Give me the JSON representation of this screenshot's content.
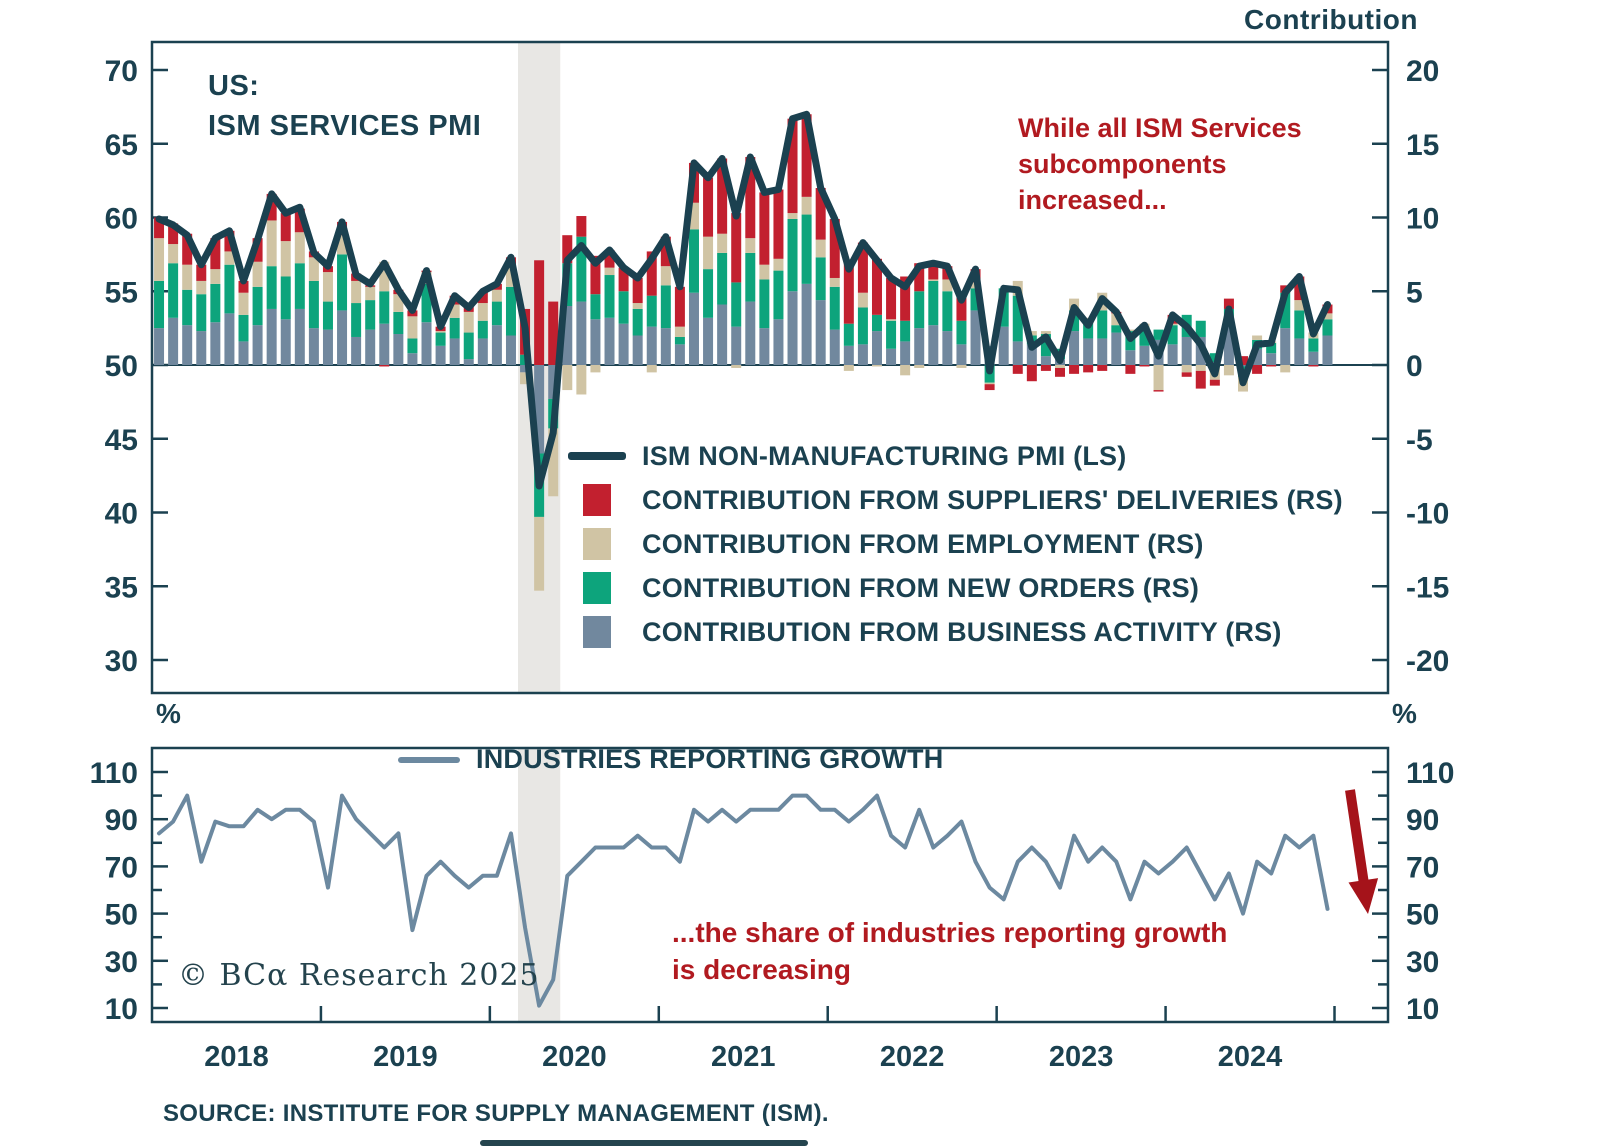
{
  "colors": {
    "axis": "#1b4150",
    "pmi_line": "#1b4150",
    "suppliers_deliveries": "#c2202f",
    "employment": "#d0c4a4",
    "new_orders": "#0da47c",
    "business_activity": "#71889e",
    "industries_line": "#6c89a0",
    "annotation_red": "#b11a20",
    "arrow_red": "#a5131a",
    "recession_band": "#e8e7e4"
  },
  "header": {
    "contribution_label": "Contribution"
  },
  "top_chart": {
    "title_lines": [
      "US:",
      "ISM SERVICES PMI"
    ],
    "annotation_lines": [
      "While all ISM Services",
      "subcomponents",
      "increased..."
    ],
    "legend": [
      {
        "label": "ISM NON-MANUFACTURING PMI (LS)",
        "type": "line",
        "color": "#1b4150"
      },
      {
        "label": "CONTRIBUTION FROM SUPPLIERS' DELIVERIES (RS)",
        "type": "box",
        "color": "#c2202f"
      },
      {
        "label": "CONTRIBUTION FROM EMPLOYMENT (RS)",
        "type": "box",
        "color": "#d0c4a4"
      },
      {
        "label": "CONTRIBUTION FROM NEW ORDERS (RS)",
        "type": "box",
        "color": "#0da47c"
      },
      {
        "label": "CONTRIBUTION FROM BUSINESS ACTIVITY (RS)",
        "type": "box",
        "color": "#71889e"
      }
    ]
  },
  "bottom_chart": {
    "legend_label": "INDUSTRIES REPORTING GROWTH",
    "annotation_lines": [
      "...the share of industries reporting growth",
      "is decreasing"
    ],
    "left_unit": "%",
    "right_unit": "%"
  },
  "footer": {
    "source": "SOURCE: INSTITUTE FOR SUPPLY MANAGEMENT (ISM).",
    "copyright": "© BCα Research 2025"
  },
  "x_axis": {
    "years": [
      "2018",
      "2019",
      "2020",
      "2021",
      "2022",
      "2023",
      "2024"
    ]
  },
  "chart_data": [
    {
      "type": "bar",
      "stacked": true,
      "title": "US: ISM SERVICES PMI",
      "x_start": "2018-01",
      "x_end": "2024-12",
      "x_freq": "monthly",
      "left_ticks": [
        70,
        65,
        60,
        55,
        50,
        45,
        40,
        35,
        30
      ],
      "left_ylim": [
        27.8,
        71.9
      ],
      "right_axis_title": "Contribution",
      "right_ticks": [
        20,
        15,
        10,
        5,
        0,
        -5,
        -10,
        -15,
        -20
      ],
      "right_ylim": [
        -20,
        20
      ],
      "baseline_left": 50,
      "recession_band": {
        "from": "2020-03",
        "to": "2020-06",
        "color": "#e8e7e4"
      },
      "series": [
        {
          "key": "business_activity",
          "name": "CONTRIBUTION FROM BUSINESS ACTIVITY (RS)",
          "color": "#71889e",
          "values": [
            2.5,
            3.2,
            2.7,
            2.3,
            2.9,
            3.5,
            1.6,
            2.7,
            3.8,
            3.1,
            3.8,
            2.5,
            2.4,
            3.7,
            1.9,
            2.4,
            2.8,
            2.1,
            0.8,
            2.9,
            1.3,
            1.8,
            0.4,
            1.8,
            2.7,
            2.0,
            -0.5,
            -6.0,
            -2.3,
            4.0,
            4.3,
            3.1,
            3.2,
            2.8,
            2.0,
            2.6,
            2.5,
            1.4,
            4.9,
            3.2,
            4.1,
            2.6,
            4.3,
            2.5,
            3.1,
            5.0,
            5.5,
            4.4,
            2.4,
            1.3,
            1.4,
            2.3,
            1.1,
            1.6,
            2.5,
            2.7,
            2.3,
            1.4,
            3.7,
            1.3,
            2.6,
            1.6,
            1.4,
            0.6,
            0.4,
            2.3,
            1.8,
            1.8,
            2.2,
            1.0,
            1.3,
            1.7,
            1.4,
            1.9,
            1.9,
            0.2,
            2.8,
            -0.1,
            1.1,
            0.8,
            2.5,
            1.8,
            0.9,
            2.0
          ]
        },
        {
          "key": "new_orders",
          "name": "CONTRIBUTION FROM NEW ORDERS (RS)",
          "color": "#0da47c",
          "values": [
            3.2,
            3.7,
            2.4,
            2.5,
            2.6,
            3.3,
            1.8,
            2.6,
            2.9,
            2.9,
            3.1,
            3.2,
            1.9,
            3.8,
            2.3,
            2.0,
            2.2,
            1.5,
            1.0,
            2.6,
            0.9,
            1.4,
            1.8,
            1.2,
            1.6,
            3.3,
            0.7,
            -4.3,
            -2.0,
            2.9,
            4.4,
            1.7,
            2.9,
            2.2,
            1.8,
            2.1,
            2.9,
            0.5,
            4.3,
            3.3,
            3.5,
            3.0,
            3.3,
            3.3,
            3.3,
            4.9,
            4.7,
            2.9,
            2.9,
            1.5,
            2.5,
            1.1,
            1.9,
            1.4,
            2.5,
            3.0,
            2.7,
            1.6,
            1.5,
            -1.2,
            2.6,
            3.1,
            0.6,
            1.5,
            0.7,
            1.4,
            1.2,
            1.9,
            0.5,
            1.3,
            1.3,
            0.7,
            1.3,
            1.5,
            1.1,
            0.6,
            1.0,
            -0.7,
            0.6,
            0.7,
            2.4,
            1.9,
            0.9,
            1.1
          ]
        },
        {
          "key": "employment",
          "name": "CONTRIBUTION FROM EMPLOYMENT (RS)",
          "color": "#d0c4a4",
          "values": [
            2.9,
            1.3,
            1.7,
            0.9,
            1.0,
            0.9,
            1.5,
            1.7,
            3.1,
            2.4,
            2.1,
            1.6,
            2.0,
            1.3,
            1.5,
            0.9,
            2.0,
            1.2,
            1.5,
            0.8,
            0.1,
            0.9,
            1.4,
            1.2,
            0.8,
            1.4,
            -0.8,
            -5.0,
            -4.6,
            -1.7,
            -2.0,
            -0.5,
            0.5,
            0.0,
            0.4,
            -0.5,
            1.3,
            0.7,
            1.8,
            2.2,
            1.3,
            -0.2,
            1.0,
            1.0,
            0.8,
            0.4,
            1.2,
            1.2,
            0.6,
            -0.4,
            1.0,
            -0.1,
            0.1,
            -0.7,
            -0.2,
            0.1,
            0.8,
            -0.2,
            0.4,
            -0.1,
            0.0,
            1.0,
            0.3,
            0.2,
            -0.2,
            0.8,
            0.2,
            1.2,
            0.8,
            0.1,
            0.2,
            -1.7,
            0.1,
            -0.5,
            -0.4,
            -1.0,
            -0.7,
            -1.0,
            0.3,
            0.1,
            -0.5,
            0.7,
            0.4,
            0.4
          ]
        },
        {
          "key": "suppliers_deliveries",
          "name": "CONTRIBUTION FROM SUPPLIERS' DELIVERIES (RS)",
          "color": "#c2202f",
          "values": [
            1.4,
            1.4,
            2.1,
            1.1,
            2.1,
            1.4,
            0.8,
            1.6,
            1.8,
            1.9,
            1.6,
            0.4,
            0.4,
            0.9,
            0.5,
            0.1,
            -0.1,
            0.3,
            0.4,
            0.1,
            0.3,
            0.6,
            0.4,
            0.8,
            0.4,
            0.6,
            3.1,
            7.1,
            4.3,
            1.9,
            1.4,
            2.6,
            1.2,
            1.6,
            1.7,
            3.0,
            2.0,
            2.7,
            2.7,
            4.0,
            5.1,
            4.7,
            5.5,
            4.9,
            4.7,
            6.4,
            5.6,
            3.5,
            4.0,
            4.1,
            3.4,
            3.8,
            2.8,
            3.0,
            1.9,
            1.1,
            0.9,
            1.6,
            0.9,
            -0.4,
            0.0,
            -0.6,
            -1.1,
            -0.4,
            -0.6,
            -0.6,
            -0.5,
            -0.4,
            0.1,
            -0.6,
            -0.1,
            -0.1,
            0.6,
            -0.3,
            -1.2,
            -0.4,
            0.7,
            0.6,
            -0.6,
            -0.1,
            0.5,
            1.6,
            -0.1,
            0.6
          ]
        }
      ],
      "line": {
        "name": "ISM NON-MANUFACTURING PMI (LS)",
        "axis": "left",
        "color": "#1b4150",
        "values": [
          59.9,
          59.5,
          58.8,
          56.8,
          58.6,
          59.1,
          55.7,
          58.5,
          61.6,
          60.3,
          60.7,
          57.6,
          56.7,
          59.7,
          56.1,
          55.5,
          56.9,
          55.1,
          53.7,
          56.4,
          52.6,
          54.7,
          53.9,
          55.0,
          55.5,
          57.3,
          52.5,
          41.8,
          45.4,
          57.1,
          58.1,
          56.9,
          57.8,
          56.6,
          55.9,
          57.2,
          58.7,
          55.3,
          63.7,
          62.7,
          64.0,
          60.1,
          64.1,
          61.7,
          61.9,
          66.7,
          67.0,
          62.0,
          59.9,
          56.5,
          58.3,
          57.1,
          55.9,
          55.3,
          56.7,
          56.9,
          56.7,
          54.4,
          56.5,
          49.6,
          55.2,
          55.1,
          51.2,
          51.9,
          50.3,
          53.9,
          52.7,
          54.5,
          53.6,
          51.8,
          52.7,
          50.6,
          53.4,
          52.6,
          51.4,
          49.4,
          53.8,
          48.8,
          51.4,
          51.5,
          54.9,
          56.0,
          52.1,
          54.1
        ]
      }
    },
    {
      "type": "line",
      "x_start": "2018-01",
      "x_end": "2024-12",
      "x_freq": "monthly",
      "ylabel": "%",
      "ticks": [
        110,
        90,
        70,
        50,
        30,
        10
      ],
      "minor_tick_step": 10,
      "ylim": [
        4,
        120
      ],
      "series": [
        {
          "name": "INDUSTRIES REPORTING GROWTH",
          "color": "#6c89a0",
          "values": [
            84,
            89,
            100,
            72,
            89,
            87,
            87,
            94,
            90,
            94,
            94,
            89,
            61,
            100,
            90,
            84,
            78,
            84,
            43,
            66,
            72,
            66,
            61,
            66,
            66,
            84,
            44,
            11,
            22,
            66,
            72,
            78,
            78,
            78,
            83,
            78,
            78,
            72,
            94,
            89,
            94,
            89,
            94,
            94,
            94,
            100,
            100,
            94,
            94,
            89,
            94,
            100,
            83,
            78,
            94,
            78,
            83,
            89,
            72,
            61,
            56,
            72,
            78,
            72,
            61,
            83,
            72,
            78,
            72,
            56,
            72,
            67,
            72,
            78,
            67,
            56,
            67,
            50,
            72,
            67,
            83,
            78,
            83,
            52
          ]
        }
      ]
    }
  ]
}
